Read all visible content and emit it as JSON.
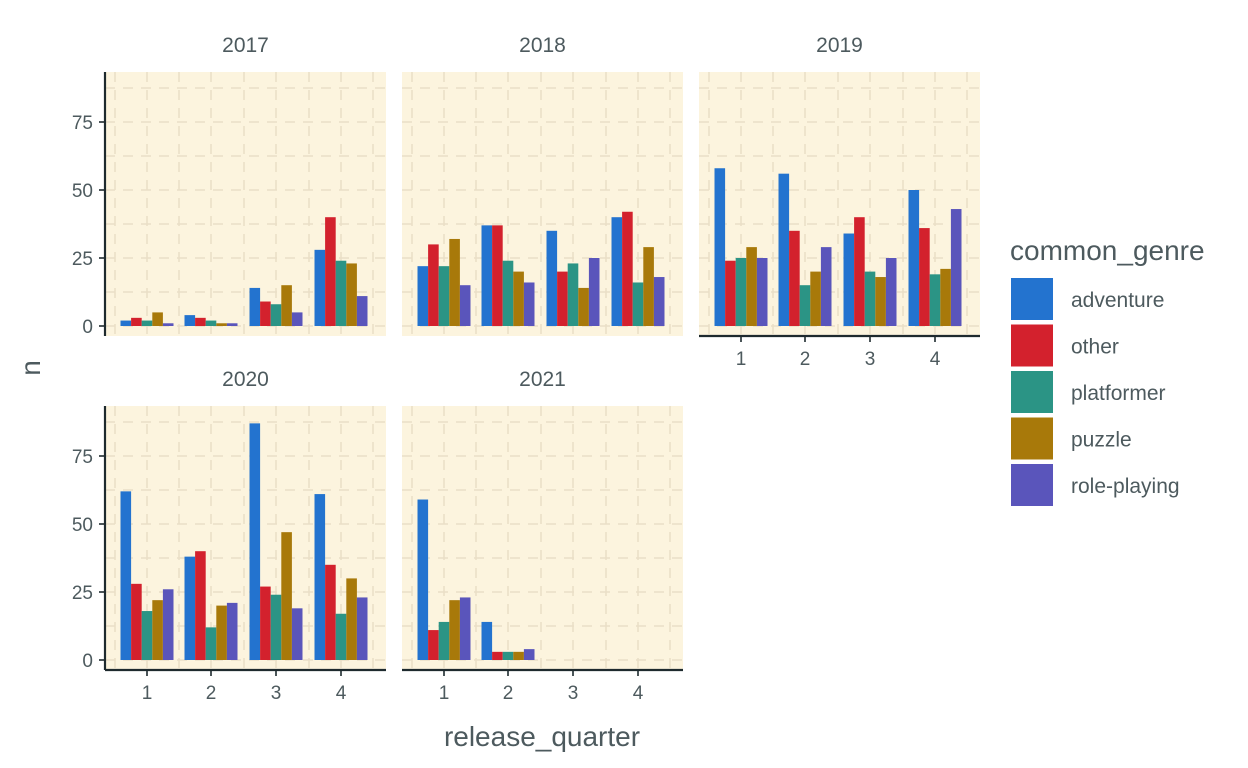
{
  "chart_data": {
    "type": "bar",
    "xlabel": "release_quarter",
    "ylabel": "n",
    "ylim": [
      0,
      91
    ],
    "y_ticks": [
      "0",
      "25",
      "50",
      "75"
    ],
    "x_ticks": [
      "1",
      "2",
      "3",
      "4"
    ],
    "grid": true,
    "background": "#fcf4de",
    "legend": {
      "title": "common_genre",
      "position": "right"
    },
    "series": [
      {
        "name": "adventure",
        "color": "#2373cf"
      },
      {
        "name": "other",
        "color": "#d3212d"
      },
      {
        "name": "platformer",
        "color": "#2b9485"
      },
      {
        "name": "puzzle",
        "color": "#a8790a"
      },
      {
        "name": "role-playing",
        "color": "#5a55bb"
      }
    ],
    "panels": [
      {
        "facet": "2017",
        "values": [
          [
            2,
            3,
            2,
            5,
            1
          ],
          [
            4,
            3,
            2,
            1,
            1
          ],
          [
            14,
            9,
            8,
            15,
            5
          ],
          [
            28,
            40,
            24,
            23,
            11
          ]
        ]
      },
      {
        "facet": "2018",
        "values": [
          [
            22,
            30,
            22,
            32,
            15
          ],
          [
            37,
            37,
            24,
            20,
            16
          ],
          [
            35,
            20,
            23,
            14,
            25
          ],
          [
            40,
            42,
            16,
            29,
            18
          ]
        ]
      },
      {
        "facet": "2019",
        "values": [
          [
            58,
            24,
            25,
            29,
            25
          ],
          [
            56,
            35,
            15,
            20,
            29
          ],
          [
            34,
            40,
            20,
            18,
            25
          ],
          [
            50,
            36,
            19,
            21,
            43
          ]
        ]
      },
      {
        "facet": "2020",
        "values": [
          [
            62,
            28,
            18,
            22,
            26
          ],
          [
            38,
            40,
            12,
            20,
            21
          ],
          [
            87,
            27,
            24,
            47,
            19
          ],
          [
            61,
            35,
            17,
            30,
            23
          ]
        ]
      },
      {
        "facet": "2021",
        "values": [
          [
            59,
            11,
            14,
            22,
            23
          ],
          [
            14,
            3,
            3,
            3,
            4
          ],
          [
            0,
            0,
            0,
            0,
            0
          ],
          [
            0,
            0,
            0,
            0,
            0
          ]
        ]
      }
    ]
  }
}
